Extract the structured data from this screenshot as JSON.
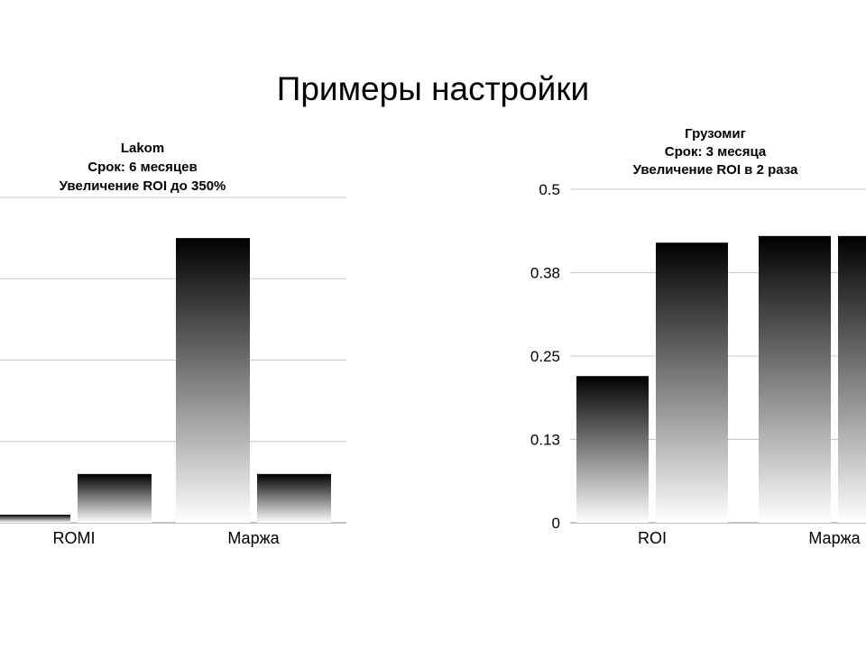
{
  "slide": {
    "title": "Примеры настройки"
  },
  "chart_data": [
    {
      "type": "bar",
      "title_lines": [
        "Lakom",
        "Срок: 6 месяцев",
        "Увеличение ROI до 350%"
      ],
      "categories": [
        "ROMI",
        "Маржа"
      ],
      "series": [
        {
          "values": [
            0.1,
            3.5
          ]
        },
        {
          "values": [
            0.6,
            0.6
          ]
        }
      ],
      "ylim": [
        0,
        4
      ],
      "yticks": [
        0,
        1,
        2,
        3,
        4
      ],
      "ytick_labels_visible": false,
      "grid": true,
      "bar_fill": "gradient black-to-white (top to bottom)"
    },
    {
      "type": "bar",
      "title_lines": [
        "Грузомиг",
        "Срок: 3 месяца",
        "Увеличение ROI в 2 раза"
      ],
      "categories": [
        "ROI",
        "Маржа"
      ],
      "series": [
        {
          "values": [
            0.22,
            0.43
          ]
        },
        {
          "values": [
            0.42,
            0.43
          ]
        }
      ],
      "ylim": [
        0,
        0.5
      ],
      "yticks": [
        0,
        0.125,
        0.25,
        0.375,
        0.5
      ],
      "ytick_labels": [
        "0",
        "0.13",
        "0.25",
        "0.38",
        "0.5"
      ],
      "grid": true,
      "bar_fill": "gradient black-to-white (top to bottom)"
    }
  ],
  "colors": {
    "bar_top": "#000000",
    "bar_bottom": "#ffffff",
    "grid": "#c8c8c8",
    "axis": "#8a8a8a"
  }
}
